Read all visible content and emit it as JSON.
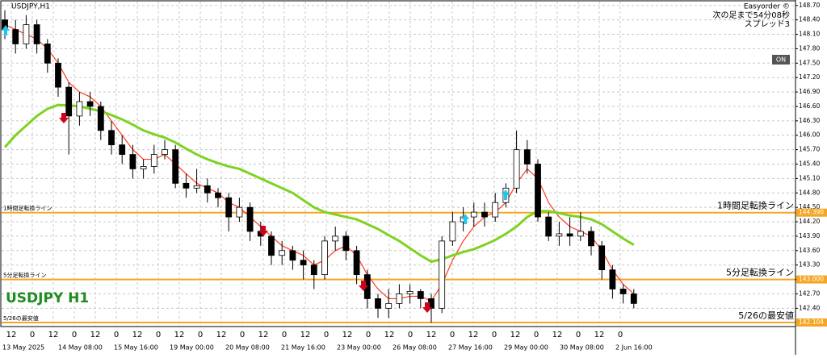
{
  "chart_data": {
    "type": "candlestick",
    "title": "USDJPY,H1",
    "watermark": "USDJPY H1",
    "panel": {
      "name": "Easyorder ©",
      "countdown": "次の足まで54分08秒",
      "spread": "スプレッド3",
      "button": "ON"
    },
    "ylim": [
      142.02,
      148.78
    ],
    "yticks": [
      {
        "value": 142.4,
        "label": "142.40"
      },
      {
        "value": 142.7,
        "label": "142.70"
      },
      {
        "value": 143.0,
        "label": "143.00"
      },
      {
        "value": 143.3,
        "label": "143.30"
      },
      {
        "value": 143.6,
        "label": "143.60"
      },
      {
        "value": 143.9,
        "label": "143.90"
      },
      {
        "value": 144.2,
        "label": "144.20"
      },
      {
        "value": 144.5,
        "label": "144.50"
      },
      {
        "value": 144.8,
        "label": "144.80"
      },
      {
        "value": 145.1,
        "label": "145.10"
      },
      {
        "value": 145.4,
        "label": "145.40"
      },
      {
        "value": 145.7,
        "label": "145.70"
      },
      {
        "value": 146.0,
        "label": "146.00"
      },
      {
        "value": 146.3,
        "label": "146.30"
      },
      {
        "value": 146.6,
        "label": "146.60"
      },
      {
        "value": 146.9,
        "label": "146.90"
      },
      {
        "value": 147.2,
        "label": "147.20"
      },
      {
        "value": 147.5,
        "label": "147.50"
      },
      {
        "value": 147.8,
        "label": "147.80"
      },
      {
        "value": 148.1,
        "label": "148.10"
      },
      {
        "value": 148.4,
        "label": "148.40"
      },
      {
        "value": 148.7,
        "label": "148.70"
      }
    ],
    "hour_labels": [
      "12",
      "0",
      "12",
      "0",
      "12",
      "0",
      "12",
      "0",
      "12",
      "0",
      "12",
      "0",
      "12",
      "0",
      "12",
      "0",
      "12",
      "0",
      "12",
      "0",
      "12",
      "0",
      "12",
      "0",
      "12",
      "0",
      "12",
      "0",
      "12",
      "0"
    ],
    "date_labels": [
      "13 May 2025",
      "14 May 08:00",
      "15 May 16:00",
      "19 May 00:00",
      "20 May 08:00",
      "21 May 16:00",
      "23 May 00:00",
      "26 May 08:00",
      "27 May 16:00",
      "29 May 00:00",
      "30 May 08:00",
      "2 Jun 16:00"
    ],
    "candles": [
      [
        148.4,
        148.6,
        148.0,
        148.2
      ],
      [
        148.2,
        148.4,
        147.7,
        147.9
      ],
      [
        147.9,
        148.5,
        147.8,
        148.3
      ],
      [
        148.3,
        148.4,
        147.7,
        147.9
      ],
      [
        147.9,
        148.0,
        147.3,
        147.5
      ],
      [
        147.5,
        147.6,
        146.8,
        147.0
      ],
      [
        147.0,
        147.1,
        145.6,
        146.4
      ],
      [
        146.4,
        146.9,
        146.2,
        146.7
      ],
      [
        146.7,
        146.9,
        146.4,
        146.6
      ],
      [
        146.6,
        146.7,
        145.9,
        146.1
      ],
      [
        146.1,
        146.3,
        145.6,
        145.8
      ],
      [
        145.8,
        146.0,
        145.4,
        145.6
      ],
      [
        145.6,
        145.8,
        145.1,
        145.3
      ],
      [
        145.3,
        145.5,
        145.1,
        145.35
      ],
      [
        145.35,
        145.8,
        145.2,
        145.6
      ],
      [
        145.6,
        145.9,
        145.5,
        145.7
      ],
      [
        145.7,
        145.8,
        144.9,
        145.0
      ],
      [
        145.0,
        145.2,
        144.7,
        144.9
      ],
      [
        144.9,
        145.3,
        144.8,
        144.95
      ],
      [
        144.95,
        145.1,
        144.6,
        144.8
      ],
      [
        144.8,
        144.9,
        144.5,
        144.7
      ],
      [
        144.7,
        144.8,
        144.0,
        144.3
      ],
      [
        144.3,
        144.7,
        144.2,
        144.5
      ],
      [
        144.5,
        144.6,
        143.8,
        144.0
      ],
      [
        144.0,
        144.2,
        143.7,
        143.9
      ],
      [
        143.9,
        144.0,
        143.3,
        143.5
      ],
      [
        143.5,
        143.8,
        143.3,
        143.6
      ],
      [
        143.6,
        143.7,
        143.2,
        143.4
      ],
      [
        143.4,
        143.6,
        143.0,
        143.3
      ],
      [
        143.3,
        143.4,
        142.8,
        143.1
      ],
      [
        143.1,
        143.9,
        143.0,
        143.8
      ],
      [
        143.8,
        144.1,
        143.6,
        143.9
      ],
      [
        143.9,
        144.0,
        143.4,
        143.6
      ],
      [
        143.6,
        143.7,
        142.9,
        143.1
      ],
      [
        143.1,
        143.2,
        142.4,
        142.6
      ],
      [
        142.6,
        142.7,
        142.2,
        142.4
      ],
      [
        142.4,
        142.8,
        142.2,
        142.5
      ],
      [
        142.5,
        142.9,
        142.4,
        142.7
      ],
      [
        142.7,
        142.9,
        142.5,
        142.75
      ],
      [
        142.75,
        142.8,
        142.4,
        142.6
      ],
      [
        142.6,
        142.7,
        142.1,
        142.4
      ],
      [
        142.4,
        143.9,
        142.3,
        143.8
      ],
      [
        143.8,
        144.4,
        143.7,
        144.2
      ],
      [
        144.2,
        144.5,
        144.0,
        144.3
      ],
      [
        144.3,
        144.6,
        144.1,
        144.4
      ],
      [
        144.4,
        144.6,
        144.1,
        144.3
      ],
      [
        144.3,
        144.8,
        144.2,
        144.6
      ],
      [
        144.6,
        145.0,
        144.5,
        144.9
      ],
      [
        144.9,
        146.1,
        144.8,
        145.7
      ],
      [
        145.7,
        145.9,
        145.2,
        145.4
      ],
      [
        145.4,
        145.5,
        144.2,
        144.3
      ],
      [
        144.3,
        144.4,
        143.8,
        143.9
      ],
      [
        143.9,
        144.2,
        143.7,
        143.95
      ],
      [
        143.95,
        144.3,
        143.7,
        143.9
      ],
      [
        143.9,
        144.4,
        143.8,
        144.0
      ],
      [
        144.0,
        144.1,
        143.5,
        143.7
      ],
      [
        143.7,
        143.8,
        143.0,
        143.2
      ],
      [
        143.2,
        143.3,
        142.6,
        142.8
      ],
      [
        142.8,
        142.9,
        142.5,
        142.7
      ],
      [
        142.7,
        142.8,
        142.4,
        142.5
      ]
    ],
    "series": [
      {
        "color": "#ff3b1f",
        "values": [
          148.3,
          148.2,
          148.1,
          148.0,
          147.8,
          147.5,
          147.1,
          146.9,
          146.8,
          146.6,
          146.3,
          146.0,
          145.7,
          145.5,
          145.5,
          145.6,
          145.4,
          145.2,
          145.0,
          144.9,
          144.8,
          144.6,
          144.5,
          144.3,
          144.1,
          143.9,
          143.7,
          143.6,
          143.5,
          143.3,
          143.4,
          143.6,
          143.7,
          143.5,
          143.1,
          142.8,
          142.6,
          142.6,
          142.65,
          142.65,
          142.55,
          142.9,
          143.4,
          143.8,
          144.1,
          144.3,
          144.4,
          144.6,
          145.0,
          145.3,
          145.1,
          144.6,
          144.3,
          144.1,
          144.0,
          143.9,
          143.6,
          143.2,
          142.9,
          142.7
        ]
      },
      {
        "color": "#7ed321",
        "values": [
          145.75,
          146.0,
          146.2,
          146.4,
          146.55,
          146.63,
          146.62,
          146.6,
          146.55,
          146.5,
          146.42,
          146.33,
          146.22,
          146.1,
          146.02,
          145.95,
          145.85,
          145.72,
          145.6,
          145.5,
          145.42,
          145.35,
          145.3,
          145.2,
          145.1,
          145.0,
          144.9,
          144.8,
          144.65,
          144.5,
          144.4,
          144.35,
          144.3,
          144.25,
          144.15,
          144.05,
          143.92,
          143.8,
          143.65,
          143.5,
          143.37,
          143.42,
          143.5,
          143.57,
          143.63,
          143.72,
          143.82,
          143.95,
          144.1,
          144.3,
          144.42,
          144.42,
          144.38,
          144.33,
          144.3,
          144.25,
          144.15,
          144.0,
          143.85,
          143.72
        ]
      }
    ],
    "levels": {
      "color": "#f5a623",
      "names": [
        "1時間足転換ライン",
        "5分足転換ライン",
        "5/26の最安値"
      ],
      "values": [
        144.39,
        143.0,
        142.104
      ],
      "value_labels": [
        "144.390",
        "143.000",
        "142.104"
      ]
    },
    "grid": true
  }
}
